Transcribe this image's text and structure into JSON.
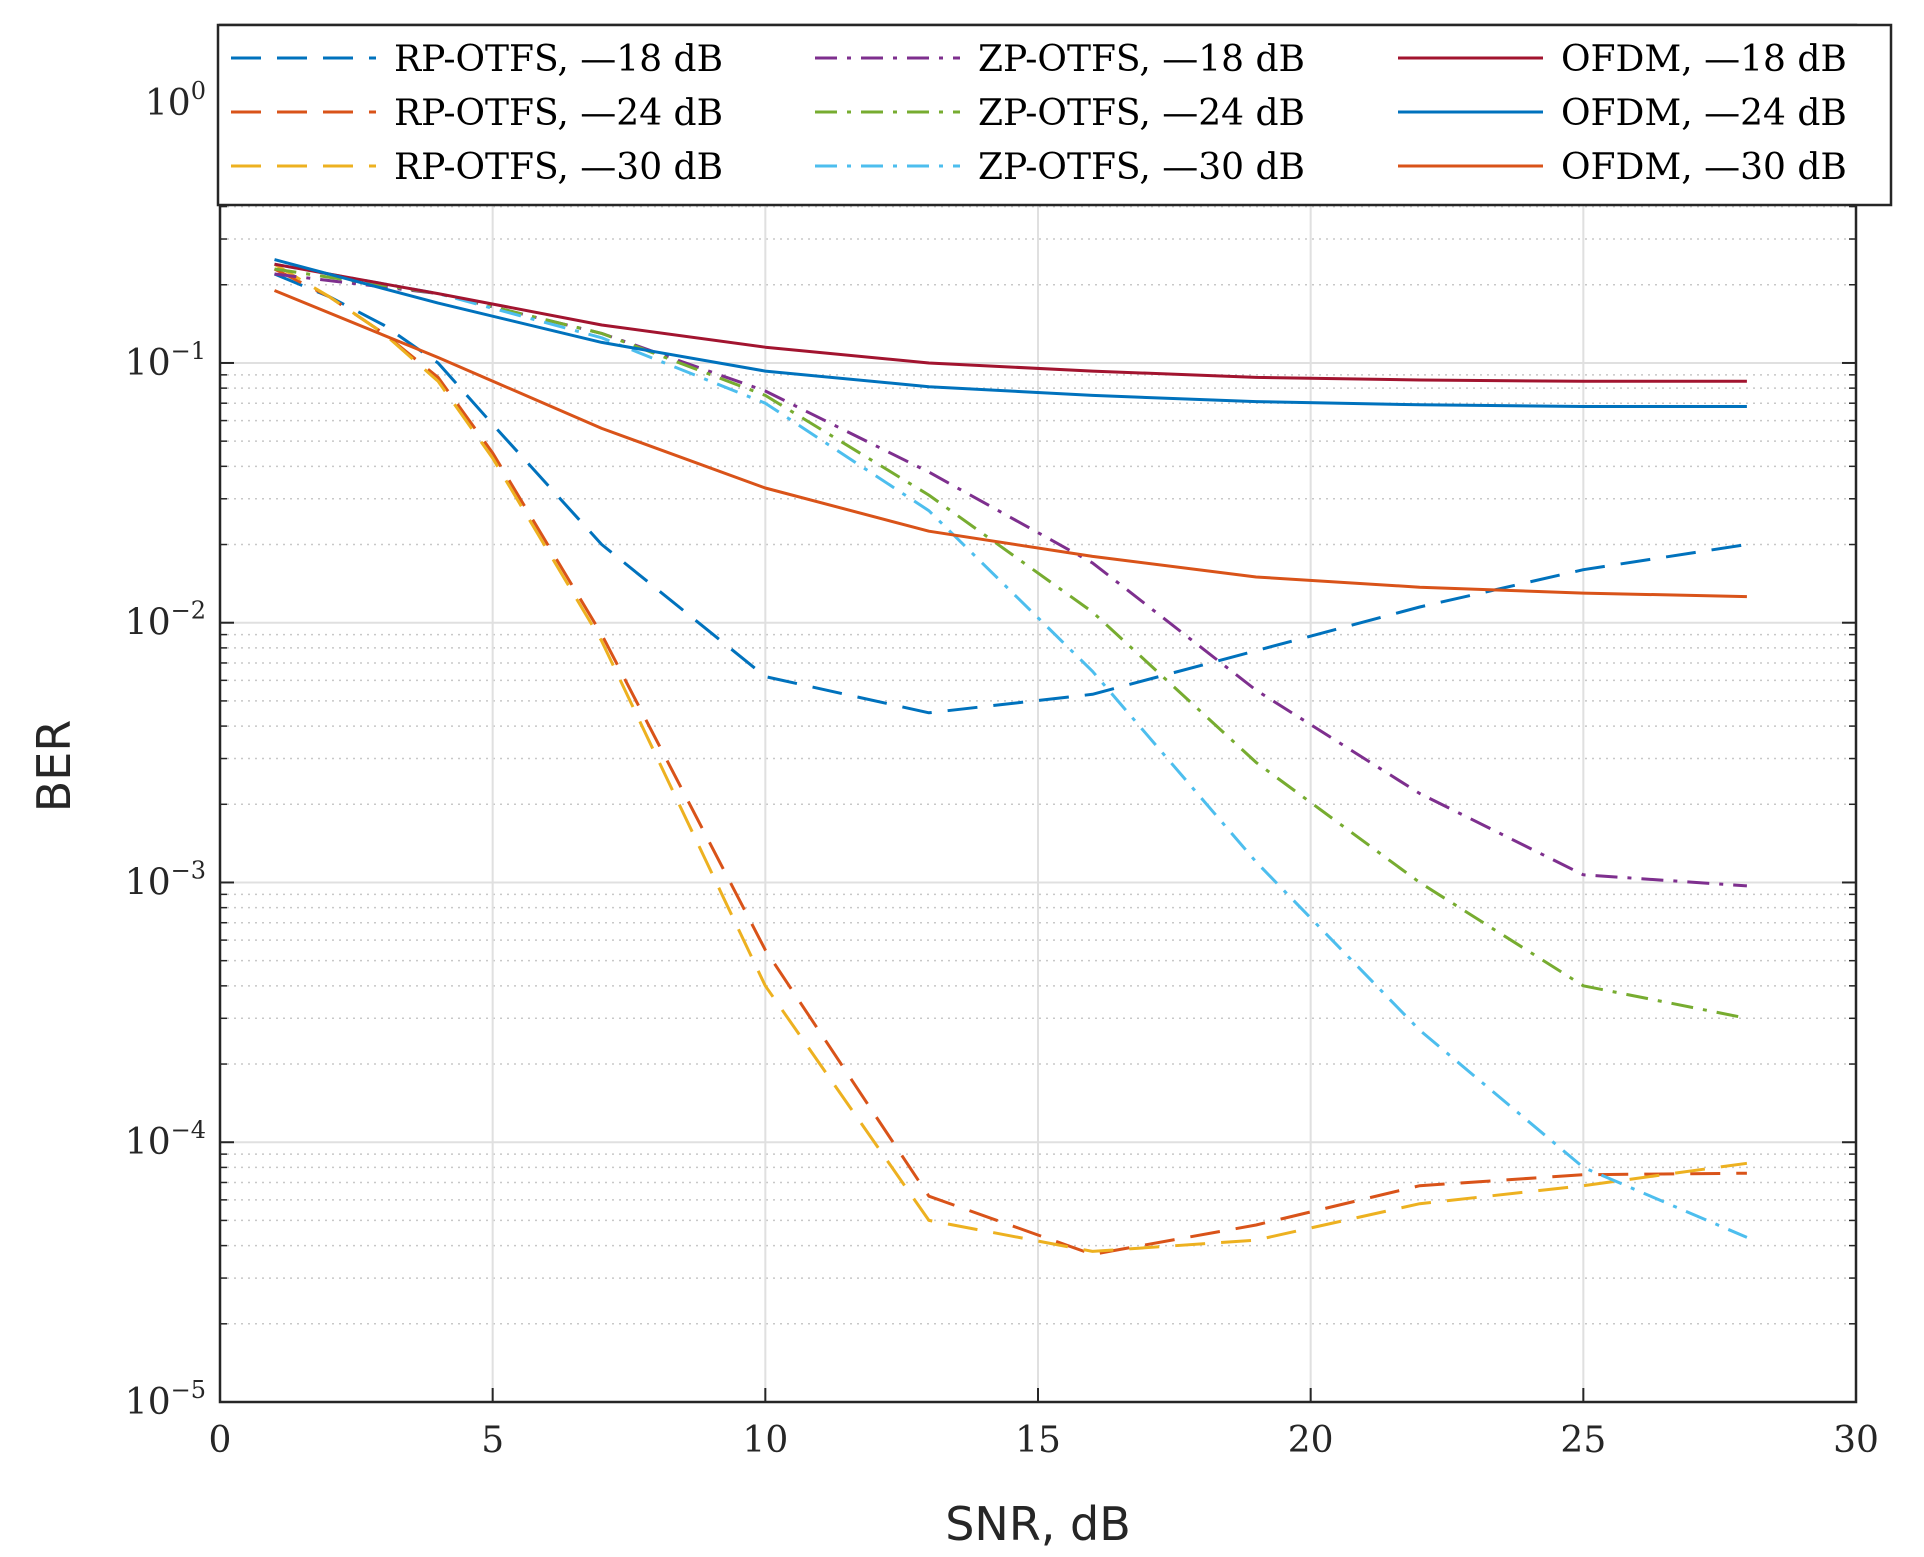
{
  "chart_data": {
    "type": "line",
    "title": "",
    "xlabel": "SNR, dB",
    "ylabel": "BER",
    "xlim": [
      0,
      30
    ],
    "ylim": [
      1e-05,
      2
    ],
    "yscale": "log",
    "grid": true,
    "legend_position": "top",
    "xticks": [
      0,
      5,
      10,
      15,
      20,
      25,
      30
    ],
    "xtick_labels": [
      "0",
      "5",
      "10",
      "15",
      "20",
      "25",
      "30"
    ],
    "yticks": [
      {
        "value": 1e-05,
        "base": "10",
        "exp": "−5"
      },
      {
        "value": 0.0001,
        "base": "10",
        "exp": "−4"
      },
      {
        "value": 0.001,
        "base": "10",
        "exp": "−3"
      },
      {
        "value": 0.01,
        "base": "10",
        "exp": "−2"
      },
      {
        "value": 0.1,
        "base": "10",
        "exp": "−1"
      },
      {
        "value": 1,
        "base": "10",
        "exp": "0"
      }
    ],
    "series": [
      {
        "name": "RP-OTFS, —18 dB",
        "color": "#0072BD",
        "style": "dash",
        "x": [
          1,
          2,
          3,
          4,
          5,
          7,
          10,
          13,
          16,
          19,
          22,
          25,
          28
        ],
        "y": [
          0.22,
          0.18,
          0.14,
          0.1,
          0.058,
          0.02,
          0.0062,
          0.0045,
          0.0053,
          0.0078,
          0.0115,
          0.016,
          0.02
        ]
      },
      {
        "name": "RP-OTFS, —24 dB",
        "color": "#D95319",
        "style": "dash",
        "x": [
          1,
          2,
          3,
          4,
          5,
          7,
          10,
          13,
          16,
          19,
          22,
          25,
          28
        ],
        "y": [
          0.23,
          0.18,
          0.13,
          0.088,
          0.045,
          0.009,
          0.00055,
          6.2e-05,
          3.7e-05,
          4.8e-05,
          6.8e-05,
          7.5e-05,
          7.6e-05
        ]
      },
      {
        "name": "RP-OTFS, —30 dB",
        "color": "#EDB120",
        "style": "dash",
        "x": [
          1,
          2,
          3,
          4,
          5,
          7,
          10,
          13,
          16,
          19,
          22,
          25,
          28
        ],
        "y": [
          0.24,
          0.18,
          0.13,
          0.085,
          0.043,
          0.0085,
          0.0004,
          5e-05,
          3.8e-05,
          4.2e-05,
          5.8e-05,
          6.8e-05,
          8.3e-05
        ]
      },
      {
        "name": "ZP-OTFS, —18 dB",
        "color": "#7E2F8E",
        "style": "dashdot",
        "x": [
          1,
          4,
          7,
          10,
          13,
          16,
          19,
          22,
          25,
          28
        ],
        "y": [
          0.22,
          0.185,
          0.13,
          0.078,
          0.038,
          0.017,
          0.0055,
          0.0022,
          0.00107,
          0.00097
        ]
      },
      {
        "name": "ZP-OTFS, —24 dB",
        "color": "#77AC30",
        "style": "dashdot",
        "x": [
          1,
          4,
          7,
          10,
          13,
          16,
          19,
          22,
          25,
          28
        ],
        "y": [
          0.23,
          0.185,
          0.13,
          0.075,
          0.031,
          0.011,
          0.0029,
          0.001,
          0.0004,
          0.0003
        ]
      },
      {
        "name": "ZP-OTFS, —30 dB",
        "color": "#4DBEEE",
        "style": "dashdot",
        "x": [
          1,
          4,
          7,
          10,
          13,
          16,
          19,
          22,
          25,
          28
        ],
        "y": [
          0.24,
          0.185,
          0.125,
          0.07,
          0.027,
          0.0065,
          0.0012,
          0.00027,
          8e-05,
          4.3e-05
        ]
      },
      {
        "name": "OFDM, —18 dB",
        "color": "#A2142F",
        "style": "solid",
        "x": [
          1,
          4,
          7,
          10,
          13,
          16,
          19,
          22,
          25,
          28
        ],
        "y": [
          0.24,
          0.185,
          0.14,
          0.115,
          0.1,
          0.093,
          0.088,
          0.086,
          0.085,
          0.085
        ]
      },
      {
        "name": "OFDM, —24 dB",
        "color": "#0072BD",
        "style": "solid",
        "x": [
          1,
          4,
          7,
          10,
          13,
          16,
          19,
          22,
          25,
          28
        ],
        "y": [
          0.25,
          0.17,
          0.12,
          0.093,
          0.081,
          0.075,
          0.071,
          0.069,
          0.068,
          0.068
        ]
      },
      {
        "name": "OFDM, —30 dB",
        "color": "#D95319",
        "style": "solid",
        "x": [
          1,
          4,
          7,
          10,
          13,
          16,
          19,
          22,
          25,
          28
        ],
        "y": [
          0.19,
          0.105,
          0.056,
          0.033,
          0.0225,
          0.018,
          0.015,
          0.0137,
          0.013,
          0.0126
        ]
      }
    ]
  }
}
